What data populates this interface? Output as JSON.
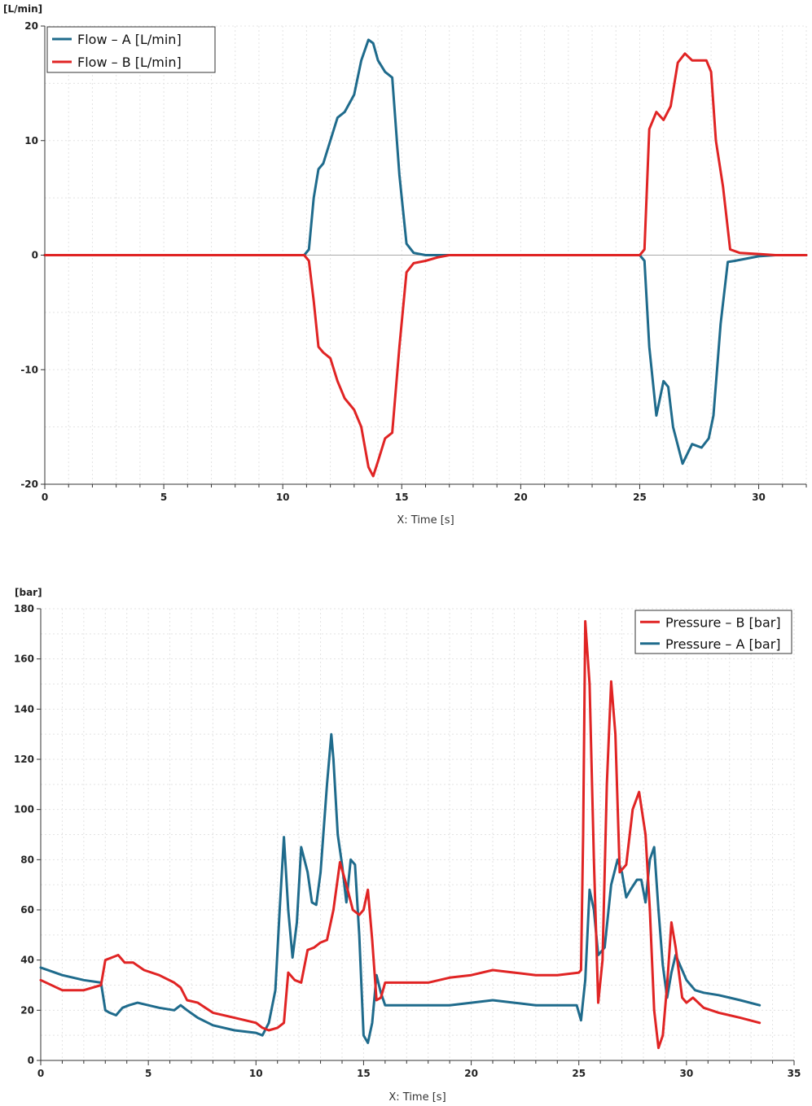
{
  "chart_data": [
    {
      "type": "line",
      "unit_label": "[L/min]",
      "xlabel": "X: Time [s]",
      "ylabel": "[L/min]",
      "xlim": [
        0,
        32
      ],
      "ylim": [
        -20,
        20
      ],
      "x_ticks": [
        0,
        5,
        10,
        15,
        20,
        25,
        30
      ],
      "y_ticks": [
        -20,
        -10,
        0,
        10,
        20
      ],
      "legend_position": "top-left",
      "series": [
        {
          "name": "Flow – A [L/min]",
          "color": "#1f6b8c",
          "x": [
            0,
            10.9,
            11.1,
            11.3,
            11.5,
            11.7,
            12.0,
            12.3,
            12.6,
            13.0,
            13.3,
            13.6,
            13.8,
            14.0,
            14.3,
            14.6,
            14.9,
            15.2,
            15.5,
            16.0,
            17.0,
            17.2,
            25.0,
            25.2,
            25.4,
            25.7,
            26.0,
            26.2,
            26.4,
            26.8,
            27.2,
            27.6,
            27.9,
            28.1,
            28.4,
            28.7,
            29.0,
            30.0,
            30.7,
            32
          ],
          "y": [
            0,
            0,
            0.5,
            5,
            7.5,
            8,
            10,
            12,
            12.5,
            14,
            17,
            18.8,
            18.5,
            17,
            16,
            15.5,
            7,
            1,
            0.2,
            0,
            0,
            0,
            0,
            -0.5,
            -8,
            -14,
            -11,
            -11.5,
            -15,
            -18.2,
            -16.5,
            -16.8,
            -16,
            -14,
            -6,
            -0.6,
            -0.5,
            -0.1,
            0,
            0
          ]
        },
        {
          "name": "Flow – B [L/min]",
          "color": "#e02424",
          "x": [
            0,
            10.9,
            11.1,
            11.3,
            11.5,
            11.7,
            12.0,
            12.3,
            12.6,
            13.0,
            13.3,
            13.6,
            13.8,
            14.0,
            14.3,
            14.6,
            14.9,
            15.2,
            15.5,
            16.0,
            16.5,
            17.0,
            25.0,
            25.2,
            25.4,
            25.7,
            26.0,
            26.3,
            26.6,
            26.9,
            27.2,
            27.5,
            27.8,
            28.0,
            28.2,
            28.5,
            28.8,
            29.2,
            30.0,
            30.7,
            32
          ],
          "y": [
            0,
            0,
            -0.5,
            -4,
            -8,
            -8.5,
            -9,
            -11,
            -12.5,
            -13.5,
            -15,
            -18.5,
            -19.3,
            -18,
            -16,
            -15.5,
            -8,
            -1.5,
            -0.7,
            -0.5,
            -0.2,
            0,
            0,
            0.5,
            11,
            12.5,
            11.8,
            13,
            16.8,
            17.6,
            17,
            17,
            17,
            16,
            10,
            6,
            0.5,
            0.2,
            0.1,
            0,
            0
          ]
        }
      ]
    },
    {
      "type": "line",
      "unit_label": "[bar]",
      "xlabel": "X: Time [s]",
      "ylabel": "[bar]",
      "xlim": [
        0,
        35
      ],
      "ylim": [
        0,
        180
      ],
      "x_ticks": [
        0,
        5,
        10,
        15,
        20,
        25,
        30,
        35
      ],
      "y_ticks": [
        0,
        20,
        40,
        60,
        80,
        100,
        120,
        140,
        160,
        180
      ],
      "legend_position": "top-right",
      "series": [
        {
          "name": "Pressure – B [bar]",
          "color": "#e02424",
          "x": [
            0,
            1.0,
            2.0,
            2.8,
            3.0,
            3.3,
            3.6,
            3.9,
            4.3,
            4.8,
            5.5,
            6.2,
            6.5,
            6.8,
            7.3,
            8.0,
            9.0,
            10.0,
            10.3,
            10.6,
            11.0,
            11.3,
            11.5,
            11.8,
            12.1,
            12.4,
            12.7,
            13.0,
            13.3,
            13.6,
            13.9,
            14.2,
            14.5,
            14.8,
            15.0,
            15.2,
            15.4,
            15.6,
            15.8,
            16.0,
            17.0,
            18.0,
            19.0,
            20.0,
            21.0,
            22.0,
            23.0,
            24.0,
            25.0,
            25.1,
            25.2,
            25.3,
            25.5,
            25.7,
            25.9,
            26.1,
            26.3,
            26.5,
            26.7,
            26.9,
            27.2,
            27.5,
            27.8,
            28.1,
            28.3,
            28.5,
            28.7,
            28.9,
            29.1,
            29.3,
            29.5,
            29.8,
            30.0,
            30.3,
            30.8,
            31.5,
            32.5,
            33.4
          ],
          "y": [
            32,
            28,
            28,
            30,
            40,
            41,
            42,
            39,
            39,
            36,
            34,
            31,
            29,
            24,
            23,
            19,
            17,
            15,
            13,
            12,
            13,
            15,
            35,
            32,
            31,
            44,
            45,
            47,
            48,
            60,
            79,
            70,
            60,
            58,
            60,
            68,
            48,
            24,
            25,
            31,
            31,
            31,
            33,
            34,
            36,
            35,
            34,
            34,
            35,
            36,
            90,
            175,
            150,
            80,
            23,
            40,
            110,
            151,
            130,
            75,
            78,
            100,
            107,
            90,
            60,
            20,
            5,
            10,
            30,
            55,
            45,
            25,
            23,
            25,
            21,
            19,
            17,
            15
          ]
        },
        {
          "name": "Pressure – A [bar]",
          "color": "#1f6b8c",
          "x": [
            0,
            1.0,
            2.0,
            2.8,
            3.0,
            3.2,
            3.5,
            3.8,
            4.1,
            4.5,
            5.0,
            5.5,
            6.2,
            6.5,
            6.8,
            7.3,
            8.0,
            9.0,
            10.0,
            10.3,
            10.6,
            10.9,
            11.1,
            11.3,
            11.5,
            11.7,
            11.9,
            12.1,
            12.4,
            12.6,
            12.8,
            13.0,
            13.3,
            13.5,
            13.6,
            13.8,
            14.0,
            14.2,
            14.4,
            14.6,
            14.8,
            15.0,
            15.2,
            15.4,
            15.6,
            15.8,
            16.0,
            17.0,
            18.0,
            19.0,
            20.0,
            21.0,
            22.0,
            23.0,
            24.0,
            24.9,
            25.1,
            25.3,
            25.5,
            25.7,
            25.9,
            26.2,
            26.5,
            26.8,
            27.0,
            27.2,
            27.4,
            27.7,
            27.9,
            28.1,
            28.3,
            28.5,
            28.7,
            28.9,
            29.1,
            29.3,
            29.5,
            29.7,
            30.0,
            30.4,
            30.8,
            31.5,
            32.5,
            33.4
          ],
          "y": [
            37,
            34,
            32,
            31,
            20,
            19,
            18,
            21,
            22,
            23,
            22,
            21,
            20,
            22,
            20,
            17,
            14,
            12,
            11,
            10,
            15,
            28,
            60,
            89,
            60,
            41,
            55,
            85,
            75,
            63,
            62,
            75,
            110,
            130,
            120,
            90,
            78,
            63,
            80,
            78,
            50,
            10,
            7,
            15,
            34,
            27,
            22,
            22,
            22,
            22,
            23,
            24,
            23,
            22,
            22,
            22,
            16,
            32,
            68,
            60,
            42,
            45,
            70,
            80,
            75,
            65,
            68,
            72,
            72,
            63,
            80,
            85,
            60,
            38,
            25,
            35,
            42,
            38,
            32,
            28,
            27,
            26,
            24,
            22
          ]
        }
      ]
    }
  ]
}
